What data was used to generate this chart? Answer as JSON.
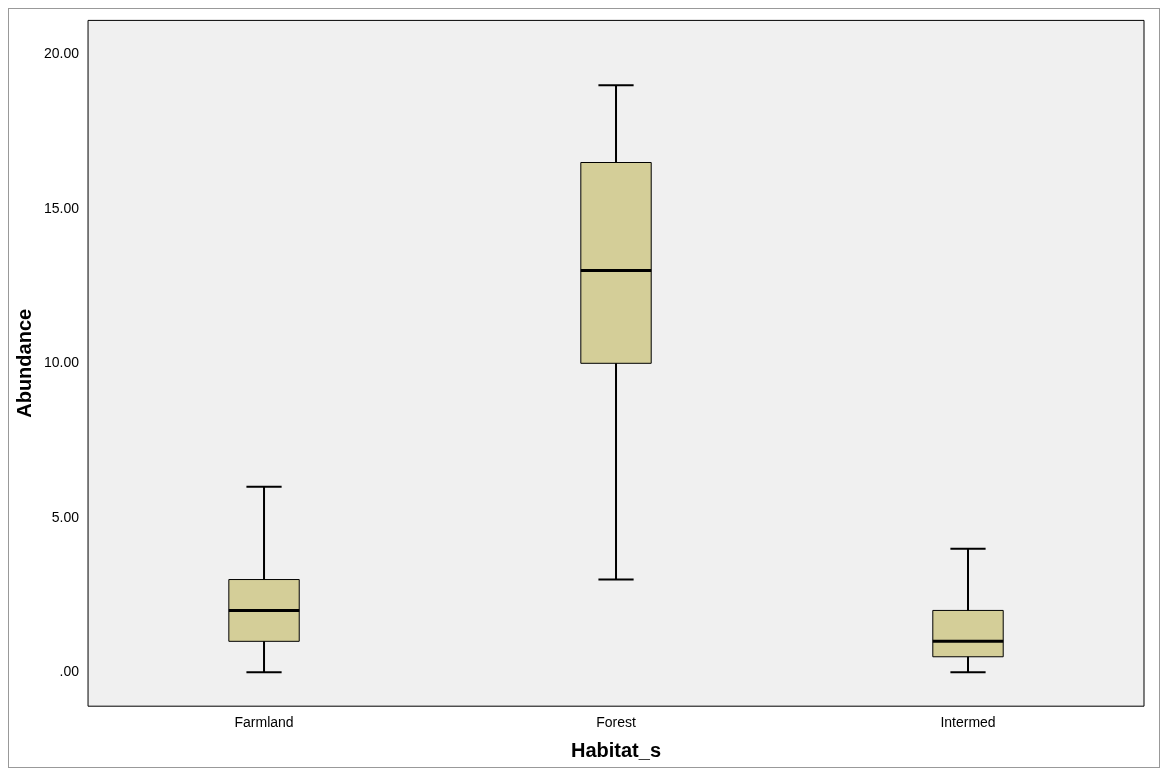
{
  "chart_data": {
    "type": "box",
    "xlabel": "Habitat_s",
    "ylabel": "Abundance",
    "categories": [
      "Farmland",
      "Forest",
      "Intermed"
    ],
    "boxes": [
      {
        "low": 0,
        "q1": 1,
        "median": 2,
        "q3": 3,
        "high": 6
      },
      {
        "low": 3,
        "q1": 10,
        "median": 13,
        "q3": 16.5,
        "high": 19
      },
      {
        "low": 0,
        "q1": 0.5,
        "median": 1,
        "q3": 2,
        "high": 4
      }
    ],
    "color": "#d4ce98",
    "ylim": [
      -1.1,
      21.1
    ],
    "yticks": [
      {
        "value": 0,
        "label": ".00"
      },
      {
        "value": 5,
        "label": "5.00"
      },
      {
        "value": 10,
        "label": "10.00"
      },
      {
        "value": 15,
        "label": "15.00"
      },
      {
        "value": 20,
        "label": "20.00"
      }
    ],
    "grid": false
  }
}
